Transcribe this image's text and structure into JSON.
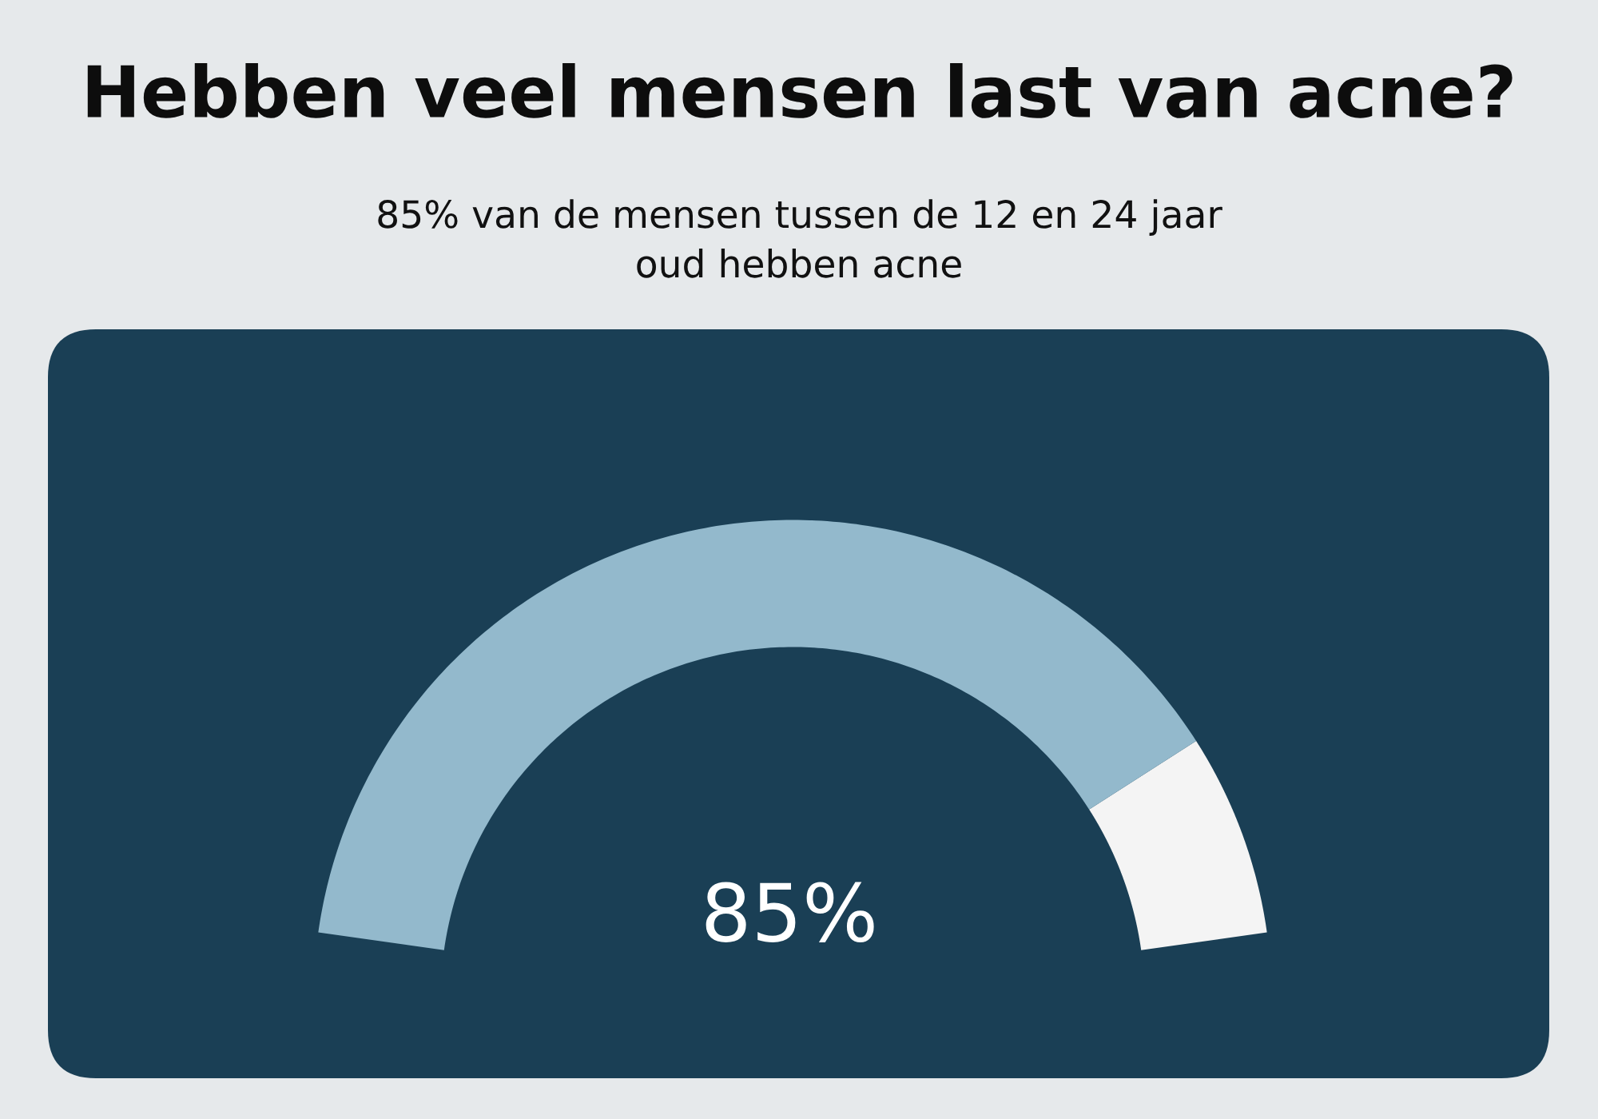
{
  "chart_data": {
    "type": "donut",
    "title": "Hebben veel mensen last van acne?",
    "subtitle": "85% van de mensen tussen de 12 en 24 jaar\noud hebben acne",
    "categories": [
      null,
      null
    ],
    "values": [
      85,
      15
    ],
    "colors": [
      "#93b9cc",
      "#f4f4f4"
    ],
    "value_labels": [
      "85%",
      null
    ]
  }
}
